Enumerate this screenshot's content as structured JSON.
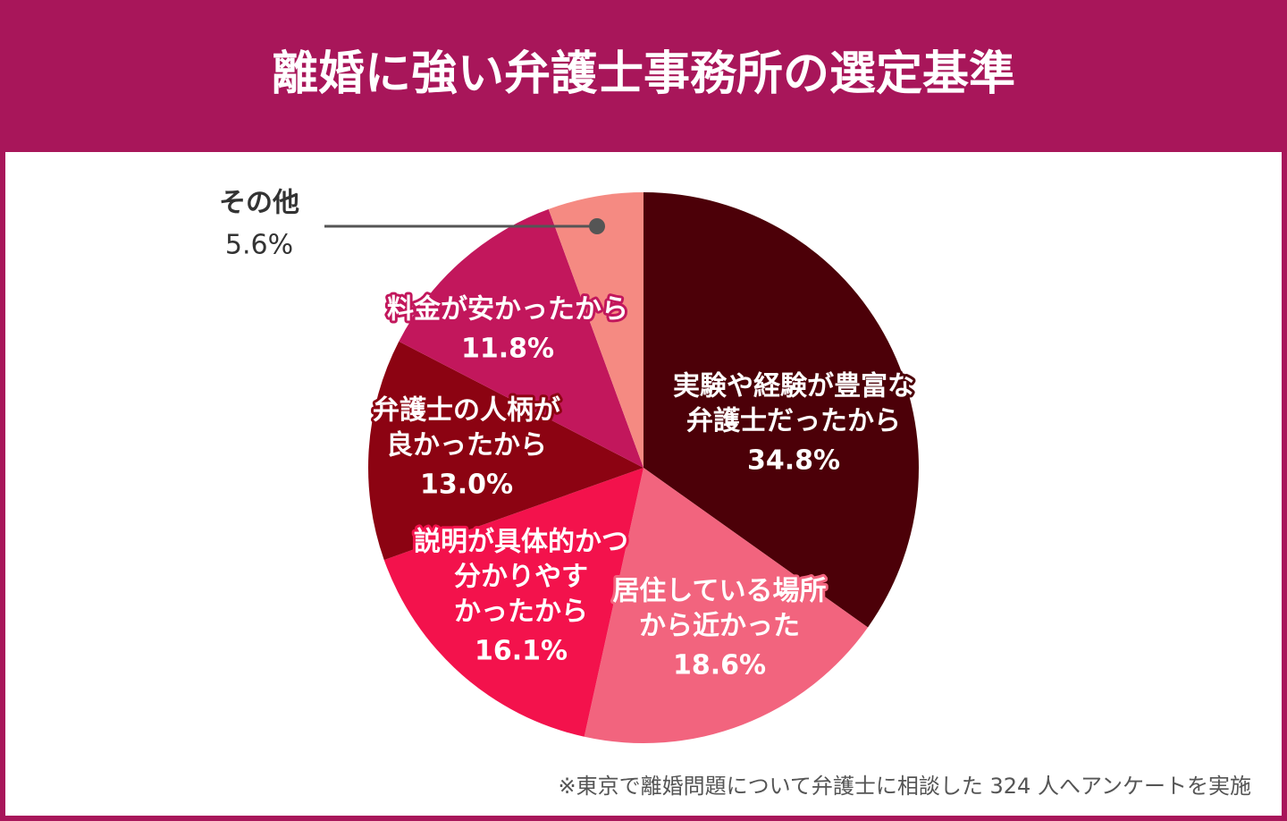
{
  "chart_data": {
    "type": "pie",
    "title": "離婚に強い弁護士事務所の選定基準",
    "categories": [
      [
        "実験や経験が豊富な",
        "弁護士だったから"
      ],
      [
        "居住している場所",
        "から近かった"
      ],
      [
        "説明が具体的かつ",
        "分かりやす",
        "かったから"
      ],
      [
        "弁護士の人柄が",
        "良かったから"
      ],
      [
        "料金が安かったから"
      ],
      [
        "その他"
      ]
    ],
    "values": [
      34.8,
      18.6,
      16.1,
      13.0,
      11.8,
      5.6
    ],
    "value_labels": [
      "34.8%",
      "18.6%",
      "16.1%",
      "13.0%",
      "11.8%",
      "5.6%"
    ],
    "colors": [
      "#4c0008",
      "#f2647e",
      "#f3124c",
      "#8c0312",
      "#c2175c",
      "#f58a82"
    ],
    "note": "※東京で離婚問題について弁護士に相談した 324 人へアンケートを実施"
  }
}
